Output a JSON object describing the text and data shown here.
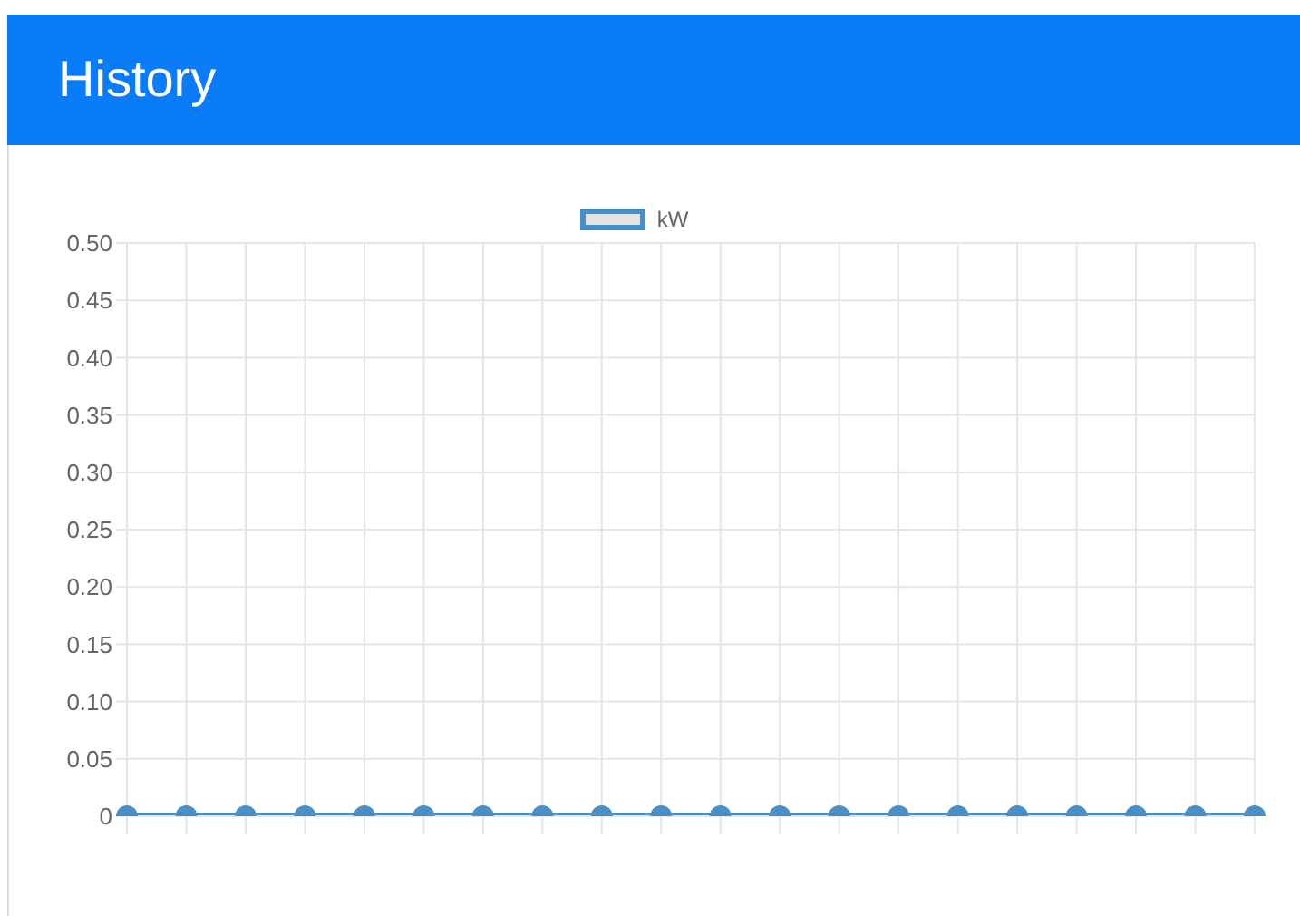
{
  "chart_data": {
    "type": "line",
    "title": "History",
    "categories": [
      null,
      null,
      null,
      null,
      null,
      null,
      null,
      null,
      null,
      null,
      null,
      null,
      null,
      null,
      null,
      null,
      null,
      null,
      null,
      null
    ],
    "series": [
      {
        "name": "kW",
        "color": "#4a90c8",
        "values": [
          0,
          0,
          0,
          0,
          0,
          0,
          0,
          0,
          0,
          0,
          0,
          0,
          0,
          0,
          0,
          0,
          0,
          0,
          0,
          0
        ]
      }
    ],
    "ylim": [
      0,
      0.5
    ],
    "yticks": [
      {
        "value": 0,
        "label": "0"
      },
      0.05,
      {
        "value": 0.1,
        "label": "0.10"
      },
      0.15,
      {
        "value": 0.2,
        "label": "0.20"
      },
      0.25,
      {
        "value": 0.3,
        "label": "0.30"
      },
      0.35,
      {
        "value": 0.4,
        "label": "0.40"
      },
      0.45,
      {
        "value": 0.5,
        "label": "0.50"
      }
    ],
    "grid": true,
    "legend": "top",
    "marker": "circle",
    "line_style": "solid"
  }
}
